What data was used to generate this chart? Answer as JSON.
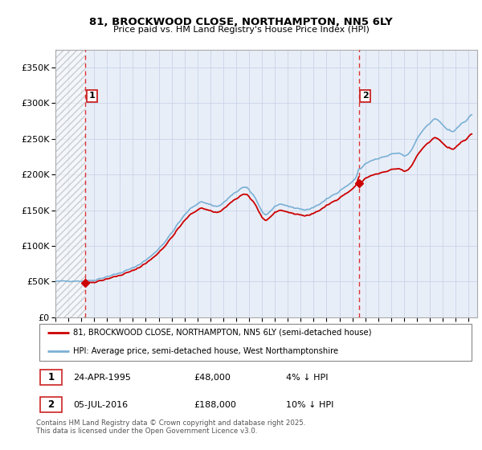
{
  "title1": "81, BROCKWOOD CLOSE, NORTHAMPTON, NN5 6LY",
  "title2": "Price paid vs. HM Land Registry's House Price Index (HPI)",
  "legend1": "81, BROCKWOOD CLOSE, NORTHAMPTON, NN5 6LY (semi-detached house)",
  "legend2": "HPI: Average price, semi-detached house, West Northamptonshire",
  "annotation_text": "Contains HM Land Registry data © Crown copyright and database right 2025.\nThis data is licensed under the Open Government Licence v3.0.",
  "marker1_date": "24-APR-1995",
  "marker1_price": "£48,000",
  "marker1_hpi": "4% ↓ HPI",
  "marker2_date": "05-JUL-2016",
  "marker2_price": "£188,000",
  "marker2_hpi": "10% ↓ HPI",
  "red_line_color": "#cc0000",
  "blue_line_color": "#7ab0d4",
  "vline_color": "#dd3333",
  "grid_color": "#c8d4e8",
  "bg_color": "#e8eef8",
  "ylim": [
    0,
    375000
  ],
  "yticks": [
    0,
    50000,
    100000,
    150000,
    200000,
    250000,
    300000,
    350000
  ],
  "xlim_start": 1993.0,
  "xlim_end": 2025.67,
  "vline1_x": 1995.31,
  "vline2_x": 2016.51,
  "marker1_x": 1995.31,
  "marker1_y": 48000,
  "marker2_x": 2016.51,
  "marker2_y": 188000
}
